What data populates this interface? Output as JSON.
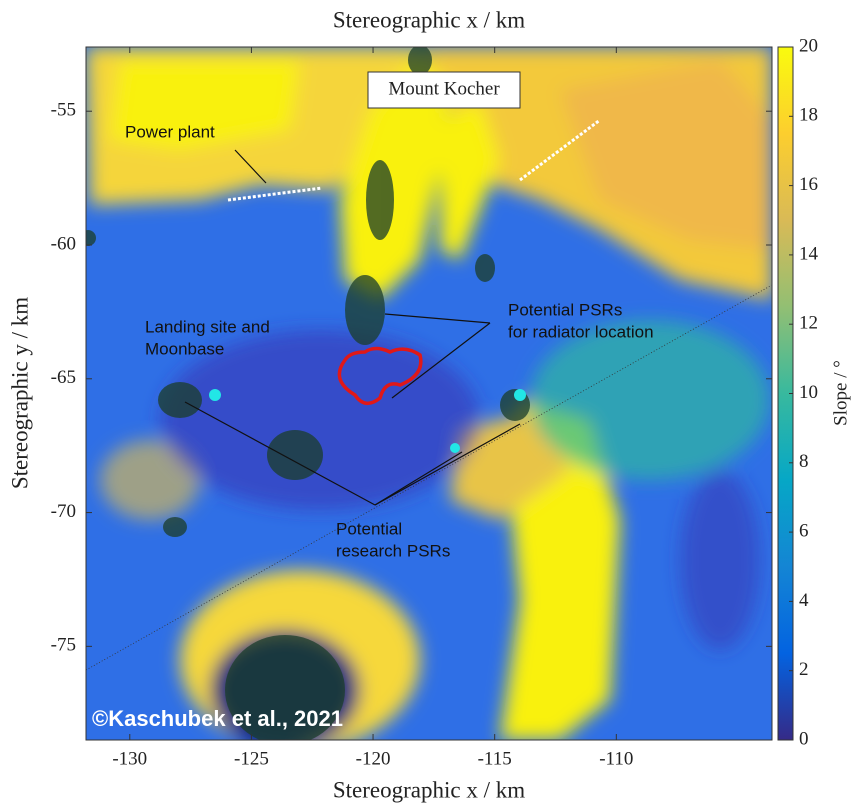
{
  "chart_data": {
    "type": "heatmap",
    "title": "Stereographic x / km",
    "x_label": "Stereographic x / km",
    "y_label": "Stereographic y / km",
    "xlim": [
      -131.8,
      -103.6
    ],
    "xticks": [
      -130,
      -125,
      -120,
      -115,
      -110
    ],
    "ylim": [
      -78.5,
      -52.6
    ],
    "yticks": [
      -55,
      -60,
      -65,
      -70,
      -75
    ],
    "colorbar_label": "Slope / °",
    "clim": [
      0,
      20
    ],
    "cticks": [
      0,
      2,
      4,
      6,
      8,
      10,
      12,
      14,
      16,
      18,
      20
    ],
    "colormap": [
      "#352A87",
      "#0363E1",
      "#1485D4",
      "#06A7C6",
      "#38B99E",
      "#92BF73",
      "#D9BA56",
      "#FCCE2E",
      "#F9FB0E"
    ],
    "annotations": [
      "Mount Kocher",
      "Power plant",
      [
        "Potential PSRs",
        "for radiator location"
      ],
      [
        "Landing site and",
        "Moonbase"
      ],
      [
        "Potential",
        "research PSRs"
      ],
      "©Kaschubek et al., 2021"
    ]
  }
}
